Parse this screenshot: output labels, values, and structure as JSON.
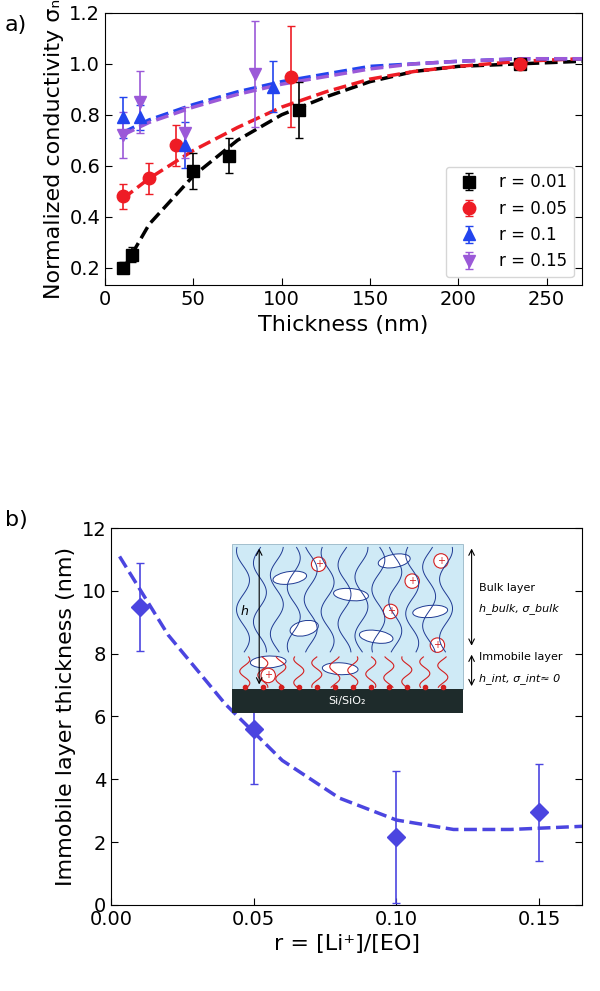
{
  "chart_data": [
    {
      "type": "scatter",
      "panel_label": "a)",
      "x_label": "Thickness (nm)",
      "y_label": "Normalized conductivity σₙ",
      "xlim": [
        0,
        270
      ],
      "xticks": [
        0,
        50,
        100,
        150,
        200,
        250
      ],
      "ylim": [
        0.13,
        1.2
      ],
      "yticks": [
        0.2,
        0.4,
        0.6,
        0.8,
        1.0,
        1.2
      ],
      "legend": "lower right",
      "series": [
        {
          "name": "r = 0.01",
          "color": "#000000",
          "marker": "square",
          "line_style": "dashed",
          "x": [
            10,
            15,
            50,
            70,
            110,
            235
          ],
          "values": [
            0.2,
            0.25,
            0.58,
            0.64,
            0.82,
            1.0
          ],
          "errors": [
            0.02,
            0.03,
            0.07,
            0.07,
            0.11,
            0.01
          ],
          "fit": {
            "x": [
              10,
              25,
              50,
              75,
              100,
              125,
              150,
              175,
              200,
              235,
              270
            ],
            "values": [
              0.19,
              0.37,
              0.56,
              0.7,
              0.8,
              0.87,
              0.93,
              0.97,
              0.99,
              1.0,
              1.01
            ]
          }
        },
        {
          "name": "r = 0.05",
          "color": "#ee1c25",
          "marker": "circle",
          "line_style": "dashed",
          "x": [
            10,
            25,
            40,
            105,
            235
          ],
          "values": [
            0.48,
            0.55,
            0.68,
            0.95,
            1.0
          ],
          "errors": [
            0.05,
            0.06,
            0.08,
            0.2,
            0.01
          ],
          "fit": {
            "x": [
              10,
              25,
              50,
              75,
              100,
              125,
              150,
              175,
              200,
              235,
              270
            ],
            "values": [
              0.47,
              0.55,
              0.66,
              0.75,
              0.83,
              0.89,
              0.94,
              0.97,
              0.99,
              1.01,
              1.02
            ]
          }
        },
        {
          "name": "r = 0.1",
          "color": "#2244ee",
          "marker": "triangle_up",
          "line_style": "dashed",
          "x": [
            10,
            20,
            45,
            95
          ],
          "values": [
            0.79,
            0.79,
            0.68,
            0.91
          ],
          "errors": [
            0.08,
            0.05,
            0.09,
            0.1
          ],
          "fit": {
            "x": [
              10,
              25,
              50,
              75,
              100,
              125,
              150,
              175,
              200,
              235,
              270
            ],
            "values": [
              0.73,
              0.78,
              0.84,
              0.89,
              0.93,
              0.96,
              0.99,
              1.0,
              1.01,
              1.02,
              1.02
            ]
          }
        },
        {
          "name": "r = 0.15",
          "color": "#9b59d8",
          "marker": "triangle_down",
          "line_style": "dashed",
          "x": [
            10,
            20,
            45,
            85
          ],
          "values": [
            0.72,
            0.85,
            0.73,
            0.96
          ],
          "errors": [
            0.09,
            0.12,
            0.1,
            0.21
          ],
          "fit": {
            "x": [
              10,
              25,
              50,
              75,
              100,
              125,
              150,
              175,
              200,
              235,
              270
            ],
            "values": [
              0.72,
              0.77,
              0.83,
              0.88,
              0.92,
              0.95,
              0.98,
              1.0,
              1.01,
              1.02,
              1.02
            ]
          }
        }
      ]
    },
    {
      "type": "scatter",
      "panel_label": "b)",
      "x_label": "r = [Li⁺]/[EO]",
      "y_label": "Immobile layer thickness (nm)",
      "xlim": [
        0,
        0.165
      ],
      "xticks": [
        {
          "value": 0,
          "label": "0.00"
        },
        {
          "value": 0.05,
          "label": "0.05"
        },
        {
          "value": 0.1,
          "label": "0.10"
        },
        {
          "value": 0.15,
          "label": "0.15"
        }
      ],
      "ylim": [
        0,
        12
      ],
      "yticks": [
        0,
        2,
        4,
        6,
        8,
        10,
        12
      ],
      "series": [
        {
          "color": "#4b45e0",
          "marker": "diamond",
          "line_style": "dashed",
          "x": [
            0.01,
            0.05,
            0.1,
            0.15
          ],
          "values": [
            9.5,
            5.6,
            2.15,
            2.95
          ],
          "errors": [
            1.4,
            1.75,
            2.1,
            1.55
          ],
          "fit": {
            "x": [
              0.003,
              0.02,
              0.04,
              0.06,
              0.08,
              0.1,
              0.12,
              0.14,
              0.165
            ],
            "values": [
              11.1,
              8.6,
              6.4,
              4.6,
              3.4,
              2.7,
              2.4,
              2.4,
              2.5
            ]
          }
        }
      ],
      "inset": {
        "height_label": "h",
        "bulk_label": "Bulk layer",
        "bulk_symbols": "h_bulk, σ_bulk",
        "immobile_label": "Immobile layer",
        "immobile_symbols": "h_int, σ_int≈ 0",
        "substrate_label": "Si/SiO₂",
        "ion_label": "+"
      }
    }
  ]
}
